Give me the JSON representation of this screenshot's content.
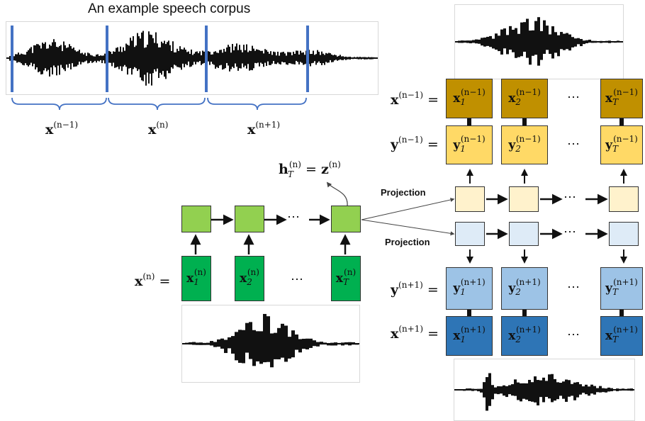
{
  "title": "An example speech corpus",
  "segments": [
    {
      "base": "x",
      "sup": "(n−1)"
    },
    {
      "base": "x",
      "sup": "(n)"
    },
    {
      "base": "x",
      "sup": "(n+1)"
    }
  ],
  "hidden_eq": {
    "lhs_base": "h",
    "lhs_sub": "T",
    "lhs_sup": "(n)",
    "equals": " = ",
    "rhs_base": "z",
    "rhs_sup": "(n)"
  },
  "left_row": {
    "label_base": "x",
    "label_sup": "(n)",
    "equals": " =",
    "cells": [
      {
        "base": "x",
        "sub": "1",
        "sup": "(n)"
      },
      {
        "base": "x",
        "sub": "2",
        "sup": "(n)"
      },
      {
        "base": "x",
        "sub": "T",
        "sup": "(n)"
      }
    ],
    "dots": "⋯"
  },
  "right_rows": [
    {
      "key": "xprev",
      "label_base": "x",
      "label_sup": "(n−1)",
      "equals": " =",
      "cells": [
        {
          "base": "x",
          "sub": "1",
          "sup": "(n−1)"
        },
        {
          "base": "x",
          "sub": "2",
          "sup": "(n−1)"
        },
        {
          "base": "x",
          "sub": "T",
          "sup": "(n−1)"
        }
      ],
      "dots": "⋯",
      "color": "#c09000"
    },
    {
      "key": "yprev",
      "label_base": "y",
      "label_sup": "(n−1)",
      "equals": " =",
      "cells": [
        {
          "base": "y",
          "sub": "1",
          "sup": "(n−1)"
        },
        {
          "base": "y",
          "sub": "2",
          "sup": "(n−1)"
        },
        {
          "base": "y",
          "sub": "T",
          "sup": "(n−1)"
        }
      ],
      "dots": "⋯",
      "color": "#ffd966"
    },
    {
      "key": "ynext",
      "label_base": "y",
      "label_sup": "(n+1)",
      "equals": " =",
      "cells": [
        {
          "base": "y",
          "sub": "1",
          "sup": "(n+1)"
        },
        {
          "base": "y",
          "sub": "2",
          "sup": "(n+1)"
        },
        {
          "base": "y",
          "sub": "T",
          "sup": "(n+1)"
        }
      ],
      "dots": "⋯",
      "color": "#9dc3e6"
    },
    {
      "key": "xnext",
      "label_base": "x",
      "label_sup": "(n+1)",
      "equals": " =",
      "cells": [
        {
          "base": "x",
          "sub": "1",
          "sup": "(n+1)"
        },
        {
          "base": "x",
          "sub": "2",
          "sup": "(n+1)"
        },
        {
          "base": "x",
          "sub": "T",
          "sup": "(n+1)"
        }
      ],
      "dots": "⋯",
      "color": "#2e75b6"
    }
  ],
  "projection_label": "Projection",
  "projection_label_2": "Projection",
  "encoder_dots": "⋯",
  "proj_dots_1": "⋯",
  "proj_dots_2": "⋯",
  "colors": {
    "encoder_hidden": "#92d050",
    "encoder_input": "#00b050",
    "proj_up": "#fff2cc",
    "proj_down": "#deebf7",
    "segment_line": "#4472c4",
    "bracket": "#4472c4"
  }
}
